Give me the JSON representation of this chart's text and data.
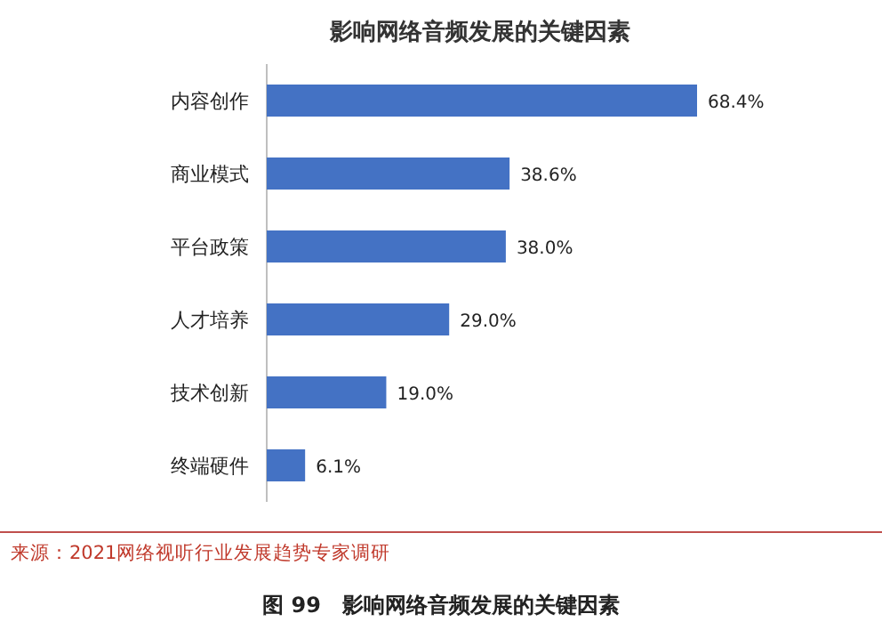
{
  "chart_data": {
    "type": "bar",
    "orientation": "horizontal",
    "title": "影响网络音频发展的关键因素",
    "categories": [
      "内容创作",
      "商业模式",
      "平台政策",
      "人才培养",
      "技术创新",
      "终端硬件"
    ],
    "values": [
      68.4,
      38.6,
      38.0,
      29.0,
      19.0,
      6.1
    ],
    "value_labels": [
      "68.4%",
      "38.6%",
      "38.0%",
      "29.0%",
      "19.0%",
      "6.1%"
    ],
    "color": "#4472c4",
    "annotations": [
      "来源：2021网络视听行业发展趋势专家调研",
      "图 99　影响网络音频发展的关键因素"
    ]
  }
}
